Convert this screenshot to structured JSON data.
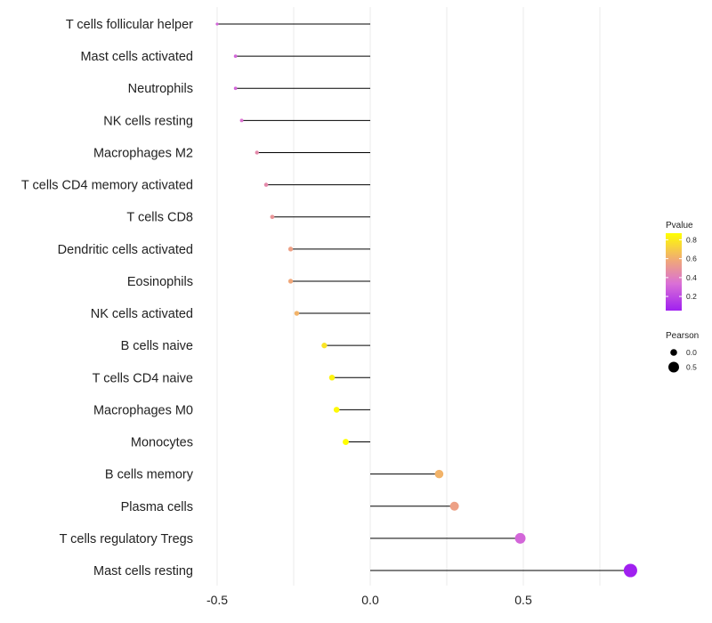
{
  "chart_data": {
    "type": "lollipop",
    "categories": [
      "T cells follicular helper",
      "Mast cells activated",
      "Neutrophils",
      "NK cells resting",
      "Macrophages M2",
      "T cells CD4 memory activated",
      "T cells CD8",
      "Dendritic cells activated",
      "Eosinophils",
      "NK cells activated",
      "B cells naive",
      "T cells CD4 naive",
      "Macrophages M0",
      "Monocytes",
      "B cells memory",
      "Plasma cells",
      "T cells regulatory  Tregs ",
      "Mast cells resting"
    ],
    "values": [
      -0.5,
      -0.44,
      -0.44,
      -0.42,
      -0.37,
      -0.34,
      -0.32,
      -0.26,
      -0.26,
      -0.24,
      -0.15,
      -0.125,
      -0.11,
      -0.08,
      0.225,
      0.275,
      0.49,
      0.85
    ],
    "pvalues": [
      0.3,
      0.3,
      0.3,
      0.35,
      0.45,
      0.45,
      0.5,
      0.55,
      0.58,
      0.62,
      0.78,
      0.83,
      0.85,
      0.87,
      0.62,
      0.55,
      0.3,
      0.05
    ],
    "xlim": [
      -0.5,
      0.85
    ],
    "xticks": [
      -0.5,
      0.0,
      0.5
    ],
    "xtick_labels": [
      "-0.5",
      "0.0",
      "0.5"
    ],
    "title": "",
    "xlabel": "",
    "ylabel": "",
    "grid": true,
    "legend_color": {
      "title": "Pvalue",
      "ticks": [
        0.8,
        0.6,
        0.4,
        0.2
      ],
      "tick_labels": [
        "0.8",
        "0.6",
        "0.4",
        "0.2"
      ],
      "range": [
        0.05,
        0.87
      ],
      "placement": "right"
    },
    "legend_size": {
      "title": "Pearson",
      "values": [
        0.0,
        0.5
      ],
      "labels": [
        "0.0",
        "0.5"
      ],
      "placement": "right"
    },
    "colors": {
      "gradient_low": "#a020f0",
      "gradient_mid": "#da70d6",
      "gradient_mid2": "#f0a878",
      "gradient_high": "#ffff00",
      "segment": "#000000",
      "grid": "#ebebeb"
    }
  }
}
